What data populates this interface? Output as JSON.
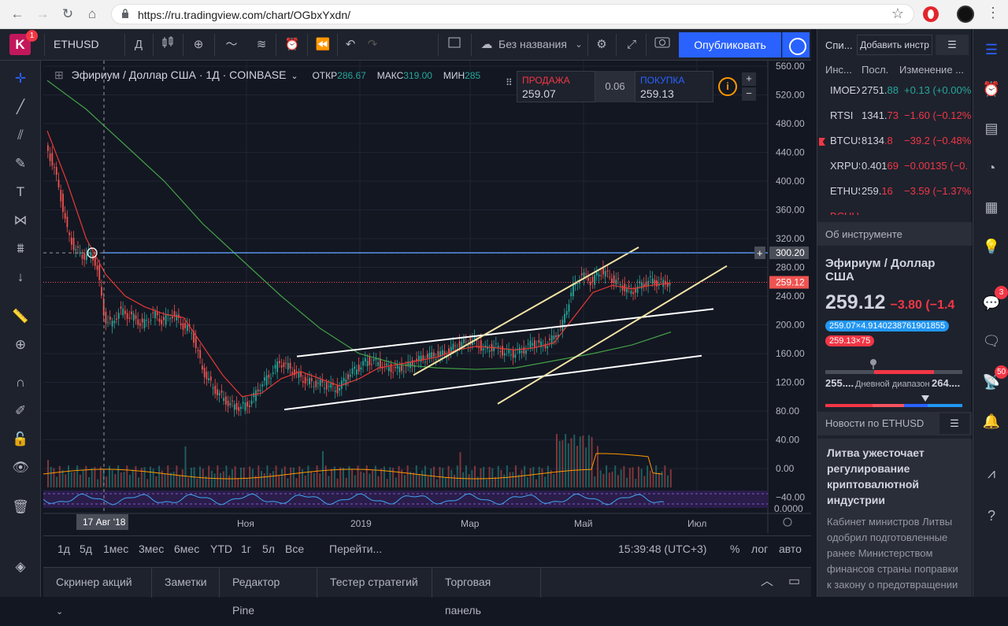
{
  "browser": {
    "url": "https://ru.tradingview.com/chart/OGbxYxdn/"
  },
  "app": {
    "logo_letter": "K",
    "logo_badge": "1",
    "symbol": "ETHUSD",
    "interval": "Д",
    "layout_name": "Без названия",
    "publish_label": "Опубликовать"
  },
  "legend": {
    "title": "Эфириум / Доллар США · 1Д · COINBASE",
    "open_label": "ОТКР",
    "open": "286.67",
    "high_label": "МАКС",
    "high": "319.00",
    "low_label": "МИН",
    "low": "285"
  },
  "trade": {
    "sell_label": "ПРОДАЖА",
    "sell_value": "259.07",
    "spread": "0.06",
    "buy_label": "ПОКУПКА",
    "buy_value": "259.13"
  },
  "chart_data": {
    "type": "candlestick",
    "title": "Эфириум / Доллар США · 1Д · COINBASE",
    "yticks": [
      "560.00",
      "520.00",
      "480.00",
      "440.00",
      "400.00",
      "360.00",
      "320.00",
      "280.00",
      "240.00",
      "200.00",
      "160.00",
      "120.00",
      "80.00",
      "40.00",
      "0.00",
      "−40.00"
    ],
    "ylim": [
      -40,
      560
    ],
    "xticks": [
      "Ноя",
      "2019",
      "Мар",
      "Май",
      "Июл"
    ],
    "crosshair_date": "17 Авг '18",
    "crosshair_price": "300.20",
    "last_price": "259.12",
    "rsi_zero_label": "0.0000",
    "price_path": [
      [
        0,
        450
      ],
      [
        8,
        420
      ],
      [
        15,
        380
      ],
      [
        22,
        330
      ],
      [
        30,
        305
      ],
      [
        38,
        295
      ],
      [
        45,
        300
      ],
      [
        52,
        285
      ],
      [
        60,
        210
      ],
      [
        68,
        200
      ],
      [
        75,
        220
      ],
      [
        82,
        215
      ],
      [
        90,
        210
      ],
      [
        100,
        200
      ],
      [
        110,
        215
      ],
      [
        120,
        205
      ],
      [
        130,
        215
      ],
      [
        140,
        200
      ],
      [
        150,
        190
      ],
      [
        160,
        140
      ],
      [
        170,
        115
      ],
      [
        180,
        100
      ],
      [
        190,
        88
      ],
      [
        200,
        85
      ],
      [
        210,
        92
      ],
      [
        220,
        115
      ],
      [
        230,
        130
      ],
      [
        240,
        148
      ],
      [
        250,
        140
      ],
      [
        260,
        128
      ],
      [
        270,
        120
      ],
      [
        280,
        118
      ],
      [
        290,
        115
      ],
      [
        300,
        110
      ],
      [
        310,
        130
      ],
      [
        320,
        140
      ],
      [
        330,
        150
      ],
      [
        340,
        148
      ],
      [
        350,
        140
      ],
      [
        360,
        138
      ],
      [
        370,
        142
      ],
      [
        380,
        150
      ],
      [
        390,
        155
      ],
      [
        400,
        158
      ],
      [
        410,
        160
      ],
      [
        420,
        170
      ],
      [
        430,
        175
      ],
      [
        440,
        178
      ],
      [
        450,
        165
      ],
      [
        460,
        170
      ],
      [
        470,
        162
      ],
      [
        480,
        160
      ],
      [
        490,
        165
      ],
      [
        500,
        175
      ],
      [
        510,
        170
      ],
      [
        520,
        180
      ],
      [
        530,
        200
      ],
      [
        540,
        250
      ],
      [
        550,
        270
      ],
      [
        560,
        260
      ],
      [
        570,
        275
      ],
      [
        580,
        265
      ],
      [
        590,
        255
      ],
      [
        600,
        245
      ],
      [
        610,
        255
      ],
      [
        620,
        262
      ],
      [
        630,
        258
      ],
      [
        640,
        259
      ]
    ],
    "ma_red": [
      [
        0,
        470
      ],
      [
        20,
        400
      ],
      [
        40,
        320
      ],
      [
        60,
        270
      ],
      [
        80,
        240
      ],
      [
        100,
        225
      ],
      [
        120,
        215
      ],
      [
        140,
        210
      ],
      [
        160,
        170
      ],
      [
        180,
        130
      ],
      [
        200,
        100
      ],
      [
        220,
        105
      ],
      [
        240,
        125
      ],
      [
        260,
        135
      ],
      [
        280,
        125
      ],
      [
        300,
        115
      ],
      [
        320,
        125
      ],
      [
        340,
        140
      ],
      [
        360,
        145
      ],
      [
        380,
        150
      ],
      [
        400,
        155
      ],
      [
        420,
        165
      ],
      [
        440,
        170
      ],
      [
        460,
        168
      ],
      [
        480,
        165
      ],
      [
        500,
        168
      ],
      [
        520,
        175
      ],
      [
        540,
        210
      ],
      [
        560,
        245
      ],
      [
        580,
        255
      ],
      [
        600,
        250
      ],
      [
        620,
        255
      ],
      [
        640,
        258
      ]
    ],
    "ma_green": [
      [
        0,
        540
      ],
      [
        40,
        500
      ],
      [
        80,
        450
      ],
      [
        120,
        400
      ],
      [
        160,
        340
      ],
      [
        200,
        290
      ],
      [
        240,
        240
      ],
      [
        280,
        195
      ],
      [
        320,
        160
      ],
      [
        360,
        145
      ],
      [
        400,
        140
      ],
      [
        440,
        138
      ],
      [
        480,
        140
      ],
      [
        520,
        150
      ],
      [
        560,
        160
      ],
      [
        600,
        172
      ],
      [
        640,
        190
      ]
    ],
    "channel_white": [
      [
        [
          322,
          156
        ],
        [
          851,
          222
        ]
      ],
      [
        [
          306,
          82
        ],
        [
          836,
          157
        ]
      ]
    ],
    "channel_yellow": [
      [
        [
          470,
          130
        ],
        [
          756,
          308
        ]
      ],
      [
        [
          577,
          90
        ],
        [
          868,
          282
        ]
      ]
    ]
  },
  "timeframes": [
    "1д",
    "5д",
    "1мес",
    "3мес",
    "6мес",
    "YTD",
    "1г",
    "5л",
    "Все"
  ],
  "goto": "Перейти...",
  "clock": "15:39:48 (UTC+3)",
  "scale_opts": [
    "%",
    "лог",
    "авто"
  ],
  "bottom_tabs": [
    "Скринер акций",
    "Заметки",
    "Редактор Pine",
    "Тестер стратегий",
    "Торговая панель"
  ],
  "watchlist": {
    "tab": "Спи...",
    "add_label": "Добавить инстр",
    "cols": {
      "sym": "Инс...",
      "last": "Посл.",
      "chg": "Изменение ..."
    },
    "rows": [
      {
        "sym": "IMOEX",
        "last": "2751.88",
        "chg": "+0.13 (+0.00%",
        "dir": "up"
      },
      {
        "sym": "RTSI",
        "last": "1341.73",
        "chg": "−1.60 (−0.12%",
        "dir": "down"
      },
      {
        "sym": "BTCUSD",
        "last": "8134.8",
        "chg": "−39.2 (−0.48%",
        "dir": "down"
      },
      {
        "sym": "XRPUSD",
        "last": "0.40169",
        "chg": "−0.00135 (−0.",
        "dir": "down"
      },
      {
        "sym": "ETHUSD",
        "last": "259.16",
        "chg": "−3.59 (−1.37%",
        "dir": "down"
      },
      {
        "sym": "BCHUSD",
        "last": "",
        "chg": "",
        "dir": "down"
      }
    ]
  },
  "about": {
    "header": "Об инструменте",
    "name": "Эфириум / Доллар США",
    "price": "259.12",
    "change": "−3.80 (−1.4",
    "pill_blue": "259.07×4.9140238761901855",
    "pill_red": "259.13×75",
    "range_low": "255....",
    "range_label": "Дневной диапазон",
    "range_high": "264...."
  },
  "news": {
    "header": "Новости по ETHUSD",
    "title": "Литва ужесточает регулирование криптовалютной индустрии",
    "body": "Кабинет министров Литвы одобрил подготовленные ранее Министерством финансов страны поправки к закону о предотвращении"
  },
  "sidebar_badges": {
    "alerts": "3",
    "chat": "50"
  },
  "colors": {
    "bg": "#131722",
    "panel": "#1e222d",
    "up": "#26a69a",
    "down": "#ef5350",
    "accent": "#2962ff",
    "ma_red": "#e53935",
    "ma_green": "#43a047",
    "channel_yellow": "#f5e4a6"
  }
}
